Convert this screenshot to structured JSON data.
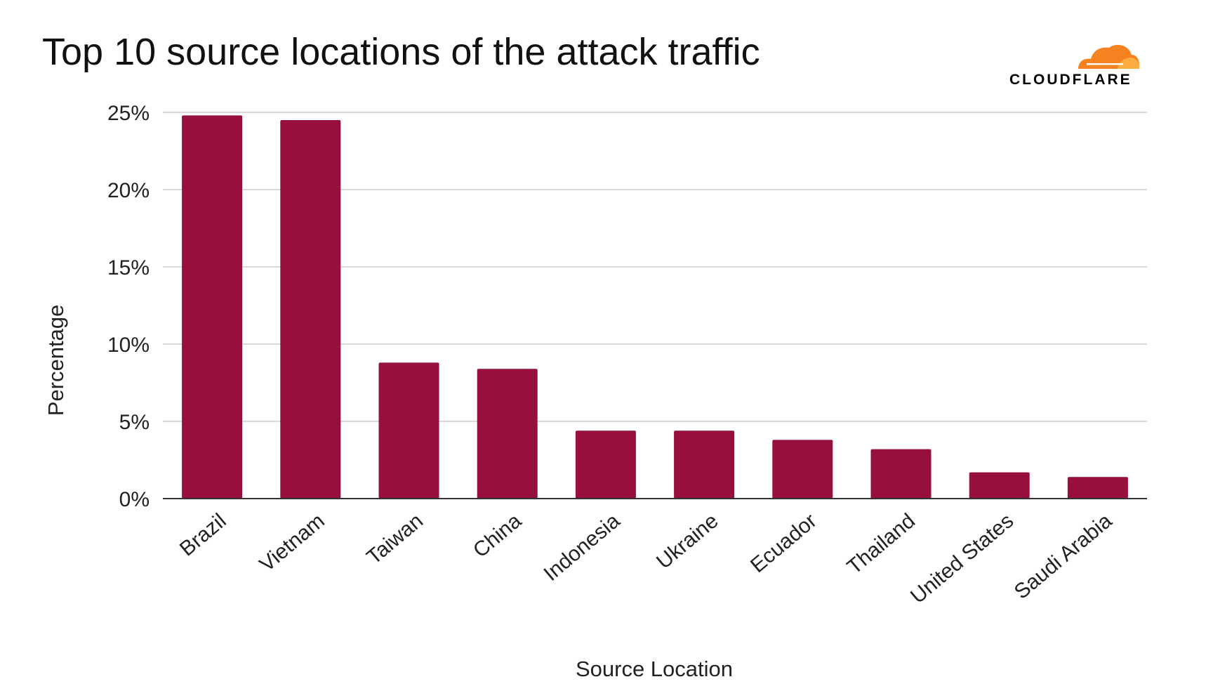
{
  "brand": {
    "name": "CLOUDFLARE",
    "logo_icon": "cloud-icon",
    "colors": [
      "#f6821f",
      "#fbad41"
    ]
  },
  "chart_data": {
    "type": "bar",
    "title": "Top 10 source locations of the attack traffic",
    "xlabel": "Source Location",
    "ylabel": "Percentage",
    "categories": [
      "Brazil",
      "Vietnam",
      "Taiwan",
      "China",
      "Indonesia",
      "Ukraine",
      "Ecuador",
      "Thailand",
      "United States",
      "Saudi Arabia"
    ],
    "values": [
      24.8,
      24.5,
      8.8,
      8.4,
      4.4,
      4.4,
      3.8,
      3.2,
      1.7,
      1.4
    ],
    "unit": "%",
    "ylim": [
      0,
      25
    ],
    "yticks": [
      "0%",
      "5%",
      "10%",
      "15%",
      "20%",
      "25%"
    ],
    "grid": true,
    "legend": "none",
    "bar_color": "#970f3d"
  }
}
